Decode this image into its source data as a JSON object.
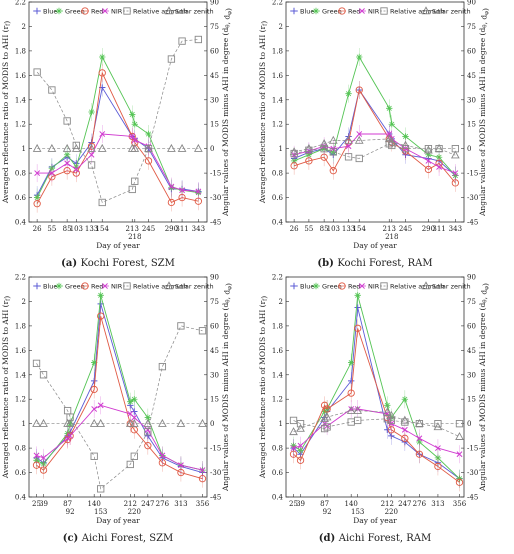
{
  "chart_data": [
    {
      "type": "line",
      "caption_label": "(a)",
      "caption_text": "Kochi Forest, SZM",
      "x": [
        26,
        55,
        85,
        103,
        133,
        154,
        213,
        218,
        245,
        290,
        311,
        343
      ],
      "xticks": [
        26,
        55,
        85,
        103,
        133,
        154,
        213,
        245,
        290,
        311,
        343
      ],
      "xticks_low": [
        218
      ],
      "xlabel": "Day of year",
      "ylabel": "Averaged reflectance ratio of MODIS to AHI (r_f)",
      "ylabel_right": "Angular values of MODIS minus AHI in degree (d_θ, d_φ)",
      "xlim": [
        10,
        360
      ],
      "ylim": [
        0.4,
        2.2
      ],
      "y2lim": [
        -45,
        90
      ],
      "yticks": [
        0.4,
        0.6,
        0.8,
        1,
        1.2,
        1.4,
        1.6,
        1.8,
        2,
        2.2
      ],
      "y2ticks": [
        -45,
        -30,
        -15,
        0,
        15,
        30,
        45,
        60,
        75,
        90
      ],
      "series": [
        {
          "name": "Blue",
          "color": "#5b5bd6",
          "marker": "plus",
          "axis": "left",
          "values": [
            0.62,
            0.85,
            0.93,
            0.88,
            1.05,
            1.5,
            1.1,
            1.08,
            1.0,
            0.67,
            0.67,
            0.65
          ]
        },
        {
          "name": "Green",
          "color": "#54c454",
          "marker": "star",
          "axis": "left",
          "values": [
            0.6,
            0.84,
            0.95,
            0.85,
            1.3,
            1.75,
            1.28,
            1.2,
            1.12,
            0.68,
            0.66,
            0.64
          ]
        },
        {
          "name": "Red",
          "color": "#e05a45",
          "marker": "circle",
          "axis": "left",
          "values": [
            0.55,
            0.77,
            0.82,
            0.8,
            1.02,
            1.62,
            1.1,
            1.05,
            0.9,
            0.56,
            0.6,
            0.57
          ]
        },
        {
          "name": "NIR",
          "color": "#d03ad0",
          "marker": "x",
          "axis": "left",
          "values": [
            0.8,
            0.8,
            0.88,
            0.83,
            0.95,
            1.12,
            1.1,
            1.07,
            1.02,
            0.69,
            0.66,
            0.65
          ]
        },
        {
          "name": "Relative azimuth",
          "color": "#888888",
          "marker": "square",
          "axis": "right",
          "values": [
            47,
            36,
            17,
            2,
            -10,
            -33,
            -25,
            -20,
            0,
            55,
            66,
            67
          ]
        },
        {
          "name": "Solar zenith",
          "color": "#888888",
          "marker": "triangle",
          "axis": "right",
          "values": [
            0,
            0,
            0,
            0,
            0,
            0,
            0,
            0,
            0,
            0,
            0,
            0
          ]
        }
      ]
    },
    {
      "type": "line",
      "caption_label": "(b)",
      "caption_text": "Kochi Forest, RAM",
      "x": [
        26,
        55,
        85,
        103,
        133,
        154,
        213,
        218,
        245,
        290,
        311,
        343
      ],
      "xticks": [
        26,
        55,
        85,
        103,
        133,
        154,
        213,
        245,
        290,
        311,
        343
      ],
      "xticks_low": [
        218
      ],
      "xlabel": "Day of year",
      "ylabel": "Averaged reflectance ratio of MODIS to AHI (r_f)",
      "ylabel_right": "Angular values of MODIS minus AHI in degree (d_θ, d_φ)",
      "xlim": [
        10,
        360
      ],
      "ylim": [
        0.4,
        2.2
      ],
      "y2lim": [
        -45,
        90
      ],
      "yticks": [
        0.4,
        0.6,
        0.8,
        1,
        1.2,
        1.4,
        1.6,
        1.8,
        2,
        2.2
      ],
      "y2ticks": [
        -45,
        -30,
        -15,
        0,
        15,
        30,
        45,
        60,
        75,
        90
      ],
      "series": [
        {
          "name": "Blue",
          "color": "#5b5bd6",
          "marker": "plus",
          "axis": "left",
          "values": [
            0.92,
            0.97,
            1.0,
            0.95,
            1.1,
            1.48,
            1.12,
            1.08,
            0.95,
            0.92,
            0.9,
            0.78
          ]
        },
        {
          "name": "Green",
          "color": "#54c454",
          "marker": "star",
          "axis": "left",
          "values": [
            0.9,
            0.95,
            1.0,
            0.97,
            1.45,
            1.75,
            1.33,
            1.2,
            1.1,
            0.95,
            0.93,
            0.78
          ]
        },
        {
          "name": "Red",
          "color": "#e05a45",
          "marker": "circle",
          "axis": "left",
          "values": [
            0.86,
            0.9,
            0.93,
            0.82,
            1.05,
            1.48,
            1.08,
            1.05,
            0.98,
            0.83,
            0.88,
            0.72
          ]
        },
        {
          "name": "NIR",
          "color": "#d03ad0",
          "marker": "x",
          "axis": "left",
          "values": [
            0.95,
            0.98,
            1.02,
            1.0,
            1.02,
            1.12,
            1.12,
            1.08,
            1.0,
            0.9,
            0.85,
            0.8
          ]
        },
        {
          "name": "Relative azimuth",
          "color": "#888888",
          "marker": "square",
          "axis": "right",
          "values": [
            -3,
            -1,
            0,
            -2,
            -5,
            -6,
            3,
            2,
            0,
            0,
            0,
            0
          ]
        },
        {
          "name": "Solar zenith",
          "color": "#888888",
          "marker": "triangle",
          "axis": "right",
          "values": [
            -2,
            0,
            3,
            5,
            5,
            5,
            6,
            4,
            2,
            -1,
            0,
            -4
          ]
        }
      ]
    },
    {
      "type": "line",
      "caption_label": "(c)",
      "caption_text": "Aichi Forest, SZM",
      "x": [
        25,
        39,
        87,
        92,
        140,
        153,
        212,
        220,
        247,
        276,
        313,
        356
      ],
      "xticks": [
        25,
        39,
        87,
        140,
        212,
        247,
        276,
        313,
        356
      ],
      "xticks_low": [
        92,
        153,
        220
      ],
      "xlabel": "Day of year",
      "ylabel": "Averaged reflectance ratio of MODIS to AHI (r_f)",
      "ylabel_right": "Angular values of MODIS minus AHI in degree (d_θ, d_φ)",
      "xlim": [
        10,
        365
      ],
      "ylim": [
        0.4,
        2.2
      ],
      "y2lim": [
        -45,
        90
      ],
      "yticks": [
        0.4,
        0.6,
        0.8,
        1,
        1.2,
        1.4,
        1.6,
        1.8,
        2,
        2.2
      ],
      "y2ticks": [
        -45,
        -30,
        -15,
        0,
        15,
        30,
        45,
        60,
        75,
        90
      ],
      "series": [
        {
          "name": "Blue",
          "color": "#5b5bd6",
          "marker": "plus",
          "axis": "left",
          "values": [
            0.72,
            0.68,
            0.9,
            0.93,
            1.35,
            1.98,
            1.15,
            1.1,
            0.9,
            0.72,
            0.65,
            0.6
          ]
        },
        {
          "name": "Green",
          "color": "#54c454",
          "marker": "star",
          "axis": "left",
          "values": [
            0.7,
            0.67,
            0.92,
            1.0,
            1.5,
            2.05,
            1.18,
            1.2,
            1.05,
            0.74,
            0.66,
            0.62
          ]
        },
        {
          "name": "Red",
          "color": "#e05a45",
          "marker": "circle",
          "axis": "left",
          "values": [
            0.66,
            0.62,
            0.87,
            0.9,
            1.28,
            1.88,
            1.0,
            0.95,
            0.82,
            0.68,
            0.6,
            0.55
          ]
        },
        {
          "name": "NIR",
          "color": "#d03ad0",
          "marker": "x",
          "axis": "left",
          "values": [
            0.74,
            0.72,
            0.88,
            0.9,
            1.12,
            1.15,
            1.08,
            1.05,
            0.95,
            0.74,
            0.66,
            0.62
          ]
        },
        {
          "name": "Relative azimuth",
          "color": "#888888",
          "marker": "square",
          "axis": "right",
          "values": [
            37,
            30,
            8,
            4,
            -20,
            -40,
            -25,
            -20,
            -5,
            35,
            60,
            57
          ]
        },
        {
          "name": "Solar zenith",
          "color": "#888888",
          "marker": "triangle",
          "axis": "right",
          "values": [
            0,
            0,
            0,
            0,
            0,
            0,
            0,
            0,
            0,
            0,
            0,
            0
          ]
        }
      ]
    },
    {
      "type": "line",
      "caption_label": "(d)",
      "caption_text": "Aichi Forest, RAM",
      "x": [
        25,
        39,
        87,
        92,
        140,
        153,
        212,
        220,
        247,
        276,
        313,
        356
      ],
      "xticks": [
        25,
        39,
        87,
        140,
        212,
        247,
        276,
        313,
        356
      ],
      "xticks_low": [
        92,
        153,
        220
      ],
      "xlabel": "Day of year",
      "ylabel": "Averaged reflectance ratio of MODIS to AHI (r_f)",
      "ylabel_right": "Angular values of MODIS minus AHI in degree (d_θ, d_φ)",
      "xlim": [
        10,
        365
      ],
      "ylim": [
        0.4,
        2.2
      ],
      "y2lim": [
        -45,
        90
      ],
      "yticks": [
        0.4,
        0.6,
        0.8,
        1,
        1.2,
        1.4,
        1.6,
        1.8,
        2,
        2.2
      ],
      "y2ticks": [
        -45,
        -30,
        -15,
        0,
        15,
        30,
        45,
        60,
        75,
        90
      ],
      "series": [
        {
          "name": "Blue",
          "color": "#5b5bd6",
          "marker": "plus",
          "axis": "left",
          "values": [
            0.8,
            0.75,
            1.05,
            1.1,
            1.35,
            1.95,
            0.95,
            0.9,
            0.85,
            0.75,
            0.68,
            0.55
          ]
        },
        {
          "name": "Green",
          "color": "#54c454",
          "marker": "star",
          "axis": "left",
          "values": [
            0.82,
            0.78,
            1.1,
            1.12,
            1.5,
            2.05,
            1.15,
            1.05,
            1.2,
            0.85,
            0.72,
            0.55
          ]
        },
        {
          "name": "Red",
          "color": "#e05a45",
          "marker": "circle",
          "axis": "left",
          "values": [
            0.75,
            0.7,
            1.15,
            1.12,
            1.25,
            1.78,
            1.05,
            0.95,
            0.88,
            0.75,
            0.65,
            0.52
          ]
        },
        {
          "name": "NIR",
          "color": "#d03ad0",
          "marker": "x",
          "axis": "left",
          "values": [
            0.8,
            0.82,
            1.0,
            0.98,
            1.12,
            1.12,
            1.08,
            1.0,
            0.95,
            0.88,
            0.8,
            0.75
          ]
        },
        {
          "name": "Relative azimuth",
          "color": "#888888",
          "marker": "square",
          "axis": "right",
          "values": [
            2,
            0,
            -3,
            -2,
            1,
            2,
            3,
            2,
            1,
            0,
            0,
            0
          ]
        },
        {
          "name": "Solar zenith",
          "color": "#888888",
          "marker": "triangle",
          "axis": "right",
          "values": [
            -5,
            -3,
            3,
            4,
            8,
            8,
            7,
            5,
            2,
            0,
            -2,
            -8
          ]
        }
      ]
    }
  ]
}
